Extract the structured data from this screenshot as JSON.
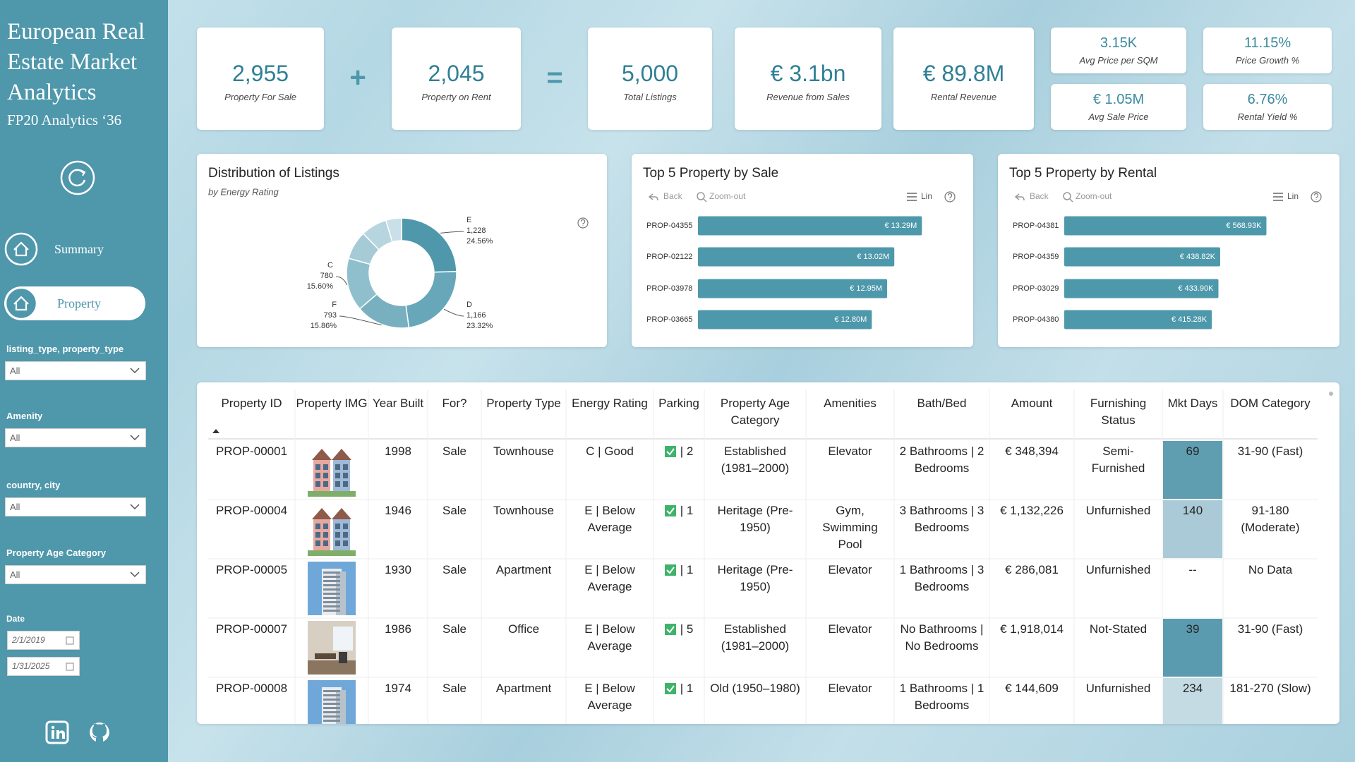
{
  "sidebar": {
    "title": "European Real Estate Market Analytics",
    "subtitle": "FP20 Analytics ‘36",
    "nav": [
      "Summary",
      "Property"
    ],
    "active_nav": 1,
    "filters": [
      {
        "label": "listing_type, property_type",
        "value": "All"
      },
      {
        "label": "Amenity",
        "value": "All"
      },
      {
        "label": "country, city",
        "value": "All"
      },
      {
        "label": "Property Age Category",
        "value": "All"
      }
    ],
    "date": {
      "label": "Date",
      "start": "2/1/2019",
      "end": "1/31/2025"
    }
  },
  "kpis": {
    "cards": [
      {
        "value": "2,955",
        "label": "Property For Sale"
      },
      {
        "value": "2,045",
        "label": "Property on Rent"
      },
      {
        "value": "5,000",
        "label": "Total Listings"
      },
      {
        "value": "€ 3.1bn",
        "label": "Revenue from Sales"
      },
      {
        "value": "€ 89.8M",
        "label": "Rental Revenue"
      }
    ],
    "operators": [
      "+",
      "="
    ],
    "small": [
      {
        "value": "3.15K",
        "label": "Avg Price per SQM"
      },
      {
        "value": "11.15%",
        "label": "Price Growth %"
      },
      {
        "value": "€ 1.05M",
        "label": "Avg Sale Price"
      },
      {
        "value": "6.76%",
        "label": "Rental Yield %"
      }
    ]
  },
  "charts": [
    {
      "type": "pie",
      "title": "Distribution of Listings",
      "subtitle": "by Energy Rating",
      "categories": [
        "E",
        "D",
        "F",
        "C",
        null,
        null,
        null
      ],
      "values": [
        1228,
        1166,
        793,
        780,
        420,
        383,
        230
      ],
      "value_labels": [
        "1,228",
        "1,166",
        "793",
        "780",
        null,
        null,
        null
      ],
      "percent_labels": [
        "24.56%",
        "23.32%",
        "15.86%",
        "15.60%",
        null,
        null,
        null
      ],
      "colors": [
        "#4f98ac",
        "#68a7b9",
        "#79b0c0",
        "#8fbfcd",
        "#a6cbd7",
        "#b7d5df",
        "#c9e0e8"
      ]
    },
    {
      "type": "bar",
      "orientation": "horizontal",
      "title": "Top 5 Property by Sale",
      "toolbar": [
        "Back",
        "Zoom-out",
        "Lin"
      ],
      "categories": [
        "PROP-04355",
        "PROP-02122",
        "PROP-03978",
        "PROP-03665"
      ],
      "values": [
        13290000,
        13020000,
        12950000,
        12800000
      ],
      "value_labels": [
        "€ 13.29M",
        "€ 13.02M",
        "€ 12.95M",
        "€ 12.80M"
      ],
      "color": "#4e98ab",
      "xlim": [
        11100000,
        13550000
      ]
    },
    {
      "type": "bar",
      "orientation": "horizontal",
      "title": "Top 5 Property by Rental",
      "toolbar": [
        "Back",
        "Zoom-out",
        "Lin"
      ],
      "categories": [
        "PROP-04381",
        "PROP-04359",
        "PROP-03029",
        "PROP-04380"
      ],
      "values": [
        568930,
        438820,
        433900,
        415280
      ],
      "value_labels": [
        "€ 568.93K",
        "€ 438.82K",
        "€ 433.90K",
        "€ 415.28K"
      ],
      "color": "#4e98ab",
      "xlim": [
        0,
        705000
      ]
    }
  ],
  "table": {
    "columns": [
      "Property ID",
      "Property IMG",
      "Year Built",
      "For?",
      "Property Type",
      "Energy Rating",
      "Parking",
      "Property Age Category",
      "Amenities",
      "Bath/Bed",
      "Amount",
      "Furnishing Status",
      "Mkt Days",
      "DOM Category"
    ],
    "rows": [
      [
        "PROP-00001",
        {
          "image": "townhouse"
        },
        1998,
        "Sale",
        "Townhouse",
        "C | Good",
        {
          "checked": true,
          "text": "| 2"
        },
        "Established (1981–2000)",
        "Elevator",
        "2 Bathrooms | 2 Bedrooms",
        "€ 348,394",
        "Semi-Furnished",
        {
          "value": 69,
          "fill": "#5f9db1"
        },
        "31-90 (Fast)"
      ],
      [
        "PROP-00004",
        {
          "image": "townhouse"
        },
        1946,
        "Sale",
        "Townhouse",
        "E | Below Average",
        {
          "checked": true,
          "text": "| 1"
        },
        "Heritage (Pre-1950)",
        "Gym, Swimming Pool",
        "3 Bathrooms | 3 Bedrooms",
        "€ 1,132,226",
        "Unfurnished",
        {
          "value": 140,
          "fill": "#a9cad6"
        },
        "91-180 (Moderate)"
      ],
      [
        "PROP-00005",
        {
          "image": "apartment"
        },
        1930,
        "Sale",
        "Apartment",
        "E | Below Average",
        {
          "checked": true,
          "text": "| 1"
        },
        "Heritage (Pre-1950)",
        "Elevator",
        "1 Bathrooms | 3 Bedrooms",
        "€ 286,081",
        "Unfurnished",
        "--",
        "No Data"
      ],
      [
        "PROP-00007",
        {
          "image": "office"
        },
        1986,
        "Sale",
        "Office",
        "E | Below Average",
        {
          "checked": true,
          "text": "| 5"
        },
        "Established (1981–2000)",
        "Elevator",
        "No Bathrooms | No Bedrooms",
        "€ 1,918,014",
        "Not-Stated",
        {
          "value": 39,
          "fill": "#5b9bb0"
        },
        "31-90 (Fast)"
      ],
      [
        "PROP-00008",
        {
          "image": "apartment"
        },
        1974,
        "Sale",
        "Apartment",
        "E | Below Average",
        {
          "checked": true,
          "text": "| 1"
        },
        "Old (1950–1980)",
        "Elevator",
        "1 Bathrooms | 1 Bedrooms",
        "€ 144,609",
        "Unfurnished",
        {
          "value": 234,
          "fill": "#c4dbe3"
        },
        "181-270 (Slow)"
      ]
    ]
  }
}
